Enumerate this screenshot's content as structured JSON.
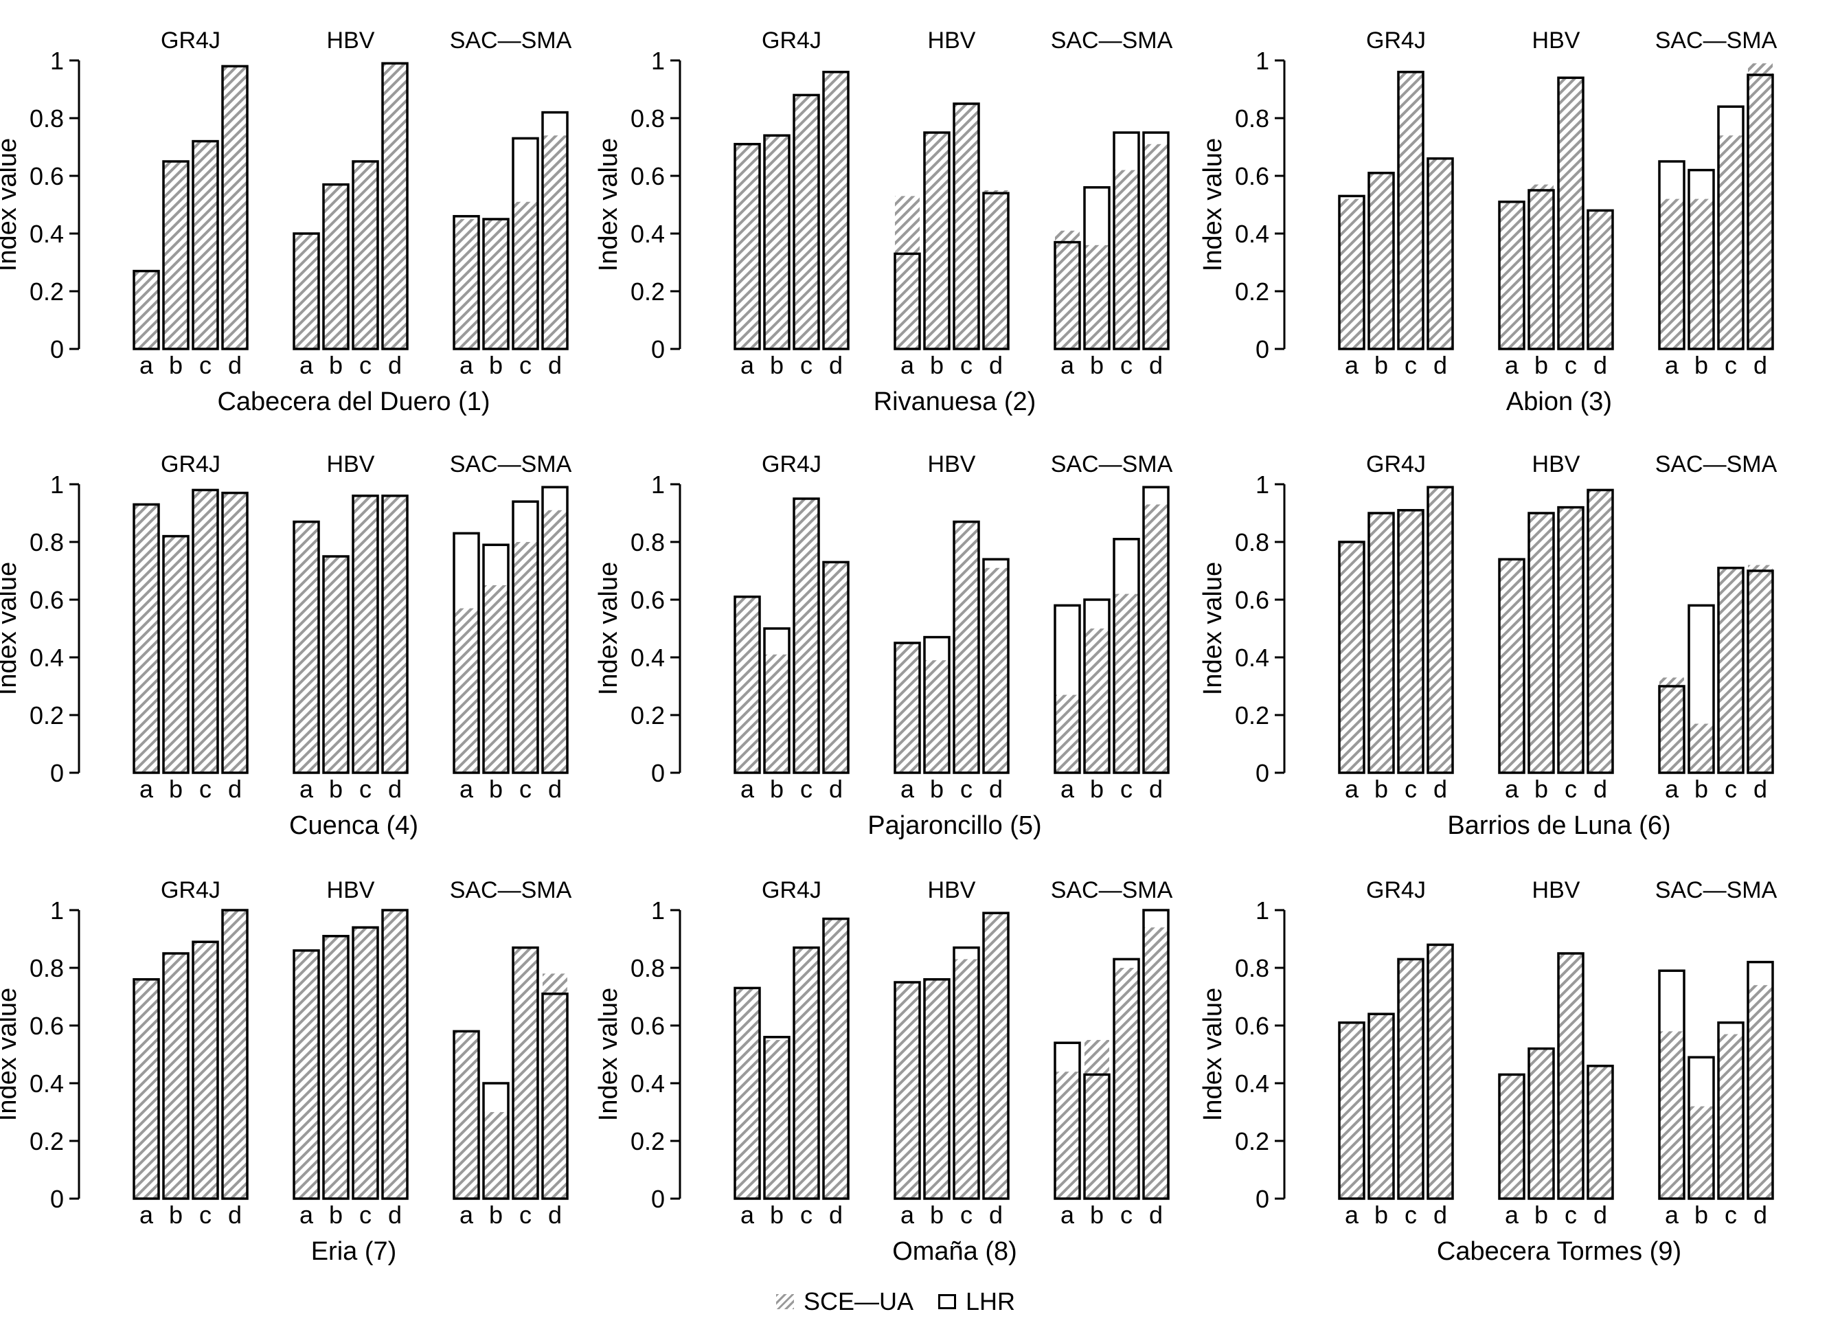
{
  "figure": {
    "legend": {
      "sce": "SCE—UA",
      "lhr": "LHR"
    },
    "colors": {
      "bar_border": "#000000",
      "hatch": "#8f8f8f",
      "background": "#ffffff"
    }
  },
  "chart_data": [
    {
      "type": "bar",
      "title": "Cabecera del Duero (1)",
      "ylabel": "Index value",
      "ylim": [
        0,
        1
      ],
      "yticks": [
        "0",
        "0.2",
        "0.4",
        "0.6",
        "0.8",
        "1"
      ],
      "categories": [
        "a",
        "b",
        "c",
        "d"
      ],
      "models": [
        {
          "name": "GR4J",
          "lhr": [
            0.27,
            0.65,
            0.72,
            0.98
          ],
          "sce": [
            0.27,
            0.65,
            0.72,
            0.98
          ]
        },
        {
          "name": "HBV",
          "lhr": [
            0.4,
            0.57,
            0.65,
            0.99
          ],
          "sce": [
            0.4,
            0.57,
            0.65,
            0.99
          ]
        },
        {
          "name": "SAC—SMA",
          "lhr": [
            0.46,
            0.45,
            0.73,
            0.82
          ],
          "sce": [
            0.45,
            0.45,
            0.51,
            0.74
          ]
        }
      ]
    },
    {
      "type": "bar",
      "title": "Rivanuesa (2)",
      "ylabel": "Index value",
      "ylim": [
        0,
        1
      ],
      "yticks": [
        "0",
        "0.2",
        "0.4",
        "0.6",
        "0.8",
        "1"
      ],
      "categories": [
        "a",
        "b",
        "c",
        "d"
      ],
      "models": [
        {
          "name": "GR4J",
          "lhr": [
            0.71,
            0.74,
            0.88,
            0.96
          ],
          "sce": [
            0.71,
            0.74,
            0.88,
            0.96
          ]
        },
        {
          "name": "HBV",
          "lhr": [
            0.33,
            0.75,
            0.85,
            0.54
          ],
          "sce": [
            0.53,
            0.75,
            0.85,
            0.55
          ]
        },
        {
          "name": "SAC—SMA",
          "lhr": [
            0.37,
            0.56,
            0.75,
            0.75
          ],
          "sce": [
            0.41,
            0.36,
            0.62,
            0.71
          ]
        }
      ]
    },
    {
      "type": "bar",
      "title": "Abion (3)",
      "ylabel": "Index value",
      "ylim": [
        0,
        1
      ],
      "yticks": [
        "0",
        "0.2",
        "0.4",
        "0.6",
        "0.8",
        "1"
      ],
      "categories": [
        "a",
        "b",
        "c",
        "d"
      ],
      "models": [
        {
          "name": "GR4J",
          "lhr": [
            0.53,
            0.61,
            0.96,
            0.66
          ],
          "sce": [
            0.52,
            0.61,
            0.96,
            0.66
          ]
        },
        {
          "name": "HBV",
          "lhr": [
            0.51,
            0.55,
            0.94,
            0.48
          ],
          "sce": [
            0.51,
            0.57,
            0.94,
            0.48
          ]
        },
        {
          "name": "SAC—SMA",
          "lhr": [
            0.65,
            0.62,
            0.84,
            0.95
          ],
          "sce": [
            0.52,
            0.52,
            0.74,
            0.99
          ]
        }
      ]
    },
    {
      "type": "bar",
      "title": "Cuenca (4)",
      "ylabel": "Index value",
      "ylim": [
        0,
        1
      ],
      "yticks": [
        "0",
        "0.2",
        "0.4",
        "0.6",
        "0.8",
        "1"
      ],
      "categories": [
        "a",
        "b",
        "c",
        "d"
      ],
      "models": [
        {
          "name": "GR4J",
          "lhr": [
            0.93,
            0.82,
            0.98,
            0.97
          ],
          "sce": [
            0.93,
            0.82,
            0.98,
            0.97
          ]
        },
        {
          "name": "HBV",
          "lhr": [
            0.87,
            0.75,
            0.96,
            0.96
          ],
          "sce": [
            0.87,
            0.75,
            0.96,
            0.96
          ]
        },
        {
          "name": "SAC—SMA",
          "lhr": [
            0.83,
            0.79,
            0.94,
            0.99
          ],
          "sce": [
            0.57,
            0.65,
            0.8,
            0.91
          ]
        }
      ]
    },
    {
      "type": "bar",
      "title": "Pajaroncillo (5)",
      "ylabel": "Index value",
      "ylim": [
        0,
        1
      ],
      "yticks": [
        "0",
        "0.2",
        "0.4",
        "0.6",
        "0.8",
        "1"
      ],
      "categories": [
        "a",
        "b",
        "c",
        "d"
      ],
      "models": [
        {
          "name": "GR4J",
          "lhr": [
            0.61,
            0.5,
            0.95,
            0.73
          ],
          "sce": [
            0.61,
            0.41,
            0.95,
            0.73
          ]
        },
        {
          "name": "HBV",
          "lhr": [
            0.45,
            0.47,
            0.87,
            0.74
          ],
          "sce": [
            0.45,
            0.39,
            0.87,
            0.71
          ]
        },
        {
          "name": "SAC—SMA",
          "lhr": [
            0.58,
            0.6,
            0.81,
            0.99
          ],
          "sce": [
            0.27,
            0.5,
            0.62,
            0.93
          ]
        }
      ]
    },
    {
      "type": "bar",
      "title": "Barrios de Luna (6)",
      "ylabel": "Index value",
      "ylim": [
        0,
        1
      ],
      "yticks": [
        "0",
        "0.2",
        "0.4",
        "0.6",
        "0.8",
        "1"
      ],
      "categories": [
        "a",
        "b",
        "c",
        "d"
      ],
      "models": [
        {
          "name": "GR4J",
          "lhr": [
            0.8,
            0.9,
            0.91,
            0.99
          ],
          "sce": [
            0.8,
            0.9,
            0.91,
            0.99
          ]
        },
        {
          "name": "HBV",
          "lhr": [
            0.74,
            0.9,
            0.92,
            0.98
          ],
          "sce": [
            0.74,
            0.9,
            0.92,
            0.98
          ]
        },
        {
          "name": "SAC—SMA",
          "lhr": [
            0.3,
            0.58,
            0.71,
            0.7
          ],
          "sce": [
            0.33,
            0.17,
            0.71,
            0.72
          ]
        }
      ]
    },
    {
      "type": "bar",
      "title": "Eria (7)",
      "ylabel": "Index value",
      "ylim": [
        0,
        1
      ],
      "yticks": [
        "0",
        "0.2",
        "0.4",
        "0.6",
        "0.8",
        "1"
      ],
      "categories": [
        "a",
        "b",
        "c",
        "d"
      ],
      "models": [
        {
          "name": "GR4J",
          "lhr": [
            0.76,
            0.85,
            0.89,
            1.0
          ],
          "sce": [
            0.76,
            0.85,
            0.89,
            1.0
          ]
        },
        {
          "name": "HBV",
          "lhr": [
            0.86,
            0.91,
            0.94,
            1.0
          ],
          "sce": [
            0.86,
            0.91,
            0.94,
            1.0
          ]
        },
        {
          "name": "SAC—SMA",
          "lhr": [
            0.58,
            0.4,
            0.87,
            0.71
          ],
          "sce": [
            0.58,
            0.3,
            0.87,
            0.78
          ]
        }
      ]
    },
    {
      "type": "bar",
      "title": "Omaña (8)",
      "ylabel": "Index value",
      "ylim": [
        0,
        1
      ],
      "yticks": [
        "0",
        "0.2",
        "0.4",
        "0.6",
        "0.8",
        "1"
      ],
      "categories": [
        "a",
        "b",
        "c",
        "d"
      ],
      "models": [
        {
          "name": "GR4J",
          "lhr": [
            0.73,
            0.56,
            0.87,
            0.97
          ],
          "sce": [
            0.73,
            0.55,
            0.87,
            0.97
          ]
        },
        {
          "name": "HBV",
          "lhr": [
            0.75,
            0.76,
            0.87,
            0.99
          ],
          "sce": [
            0.75,
            0.76,
            0.83,
            0.99
          ]
        },
        {
          "name": "SAC—SMA",
          "lhr": [
            0.54,
            0.43,
            0.83,
            1.0
          ],
          "sce": [
            0.44,
            0.55,
            0.8,
            0.94
          ]
        }
      ]
    },
    {
      "type": "bar",
      "title": "Cabecera Tormes (9)",
      "ylabel": "Index value",
      "ylim": [
        0,
        1
      ],
      "yticks": [
        "0",
        "0.2",
        "0.4",
        "0.6",
        "0.8",
        "1"
      ],
      "categories": [
        "a",
        "b",
        "c",
        "d"
      ],
      "models": [
        {
          "name": "GR4J",
          "lhr": [
            0.61,
            0.64,
            0.83,
            0.88
          ],
          "sce": [
            0.61,
            0.64,
            0.83,
            0.88
          ]
        },
        {
          "name": "HBV",
          "lhr": [
            0.43,
            0.52,
            0.85,
            0.46
          ],
          "sce": [
            0.43,
            0.52,
            0.85,
            0.46
          ]
        },
        {
          "name": "SAC—SMA",
          "lhr": [
            0.79,
            0.49,
            0.61,
            0.82
          ],
          "sce": [
            0.58,
            0.32,
            0.57,
            0.74
          ]
        }
      ]
    }
  ]
}
